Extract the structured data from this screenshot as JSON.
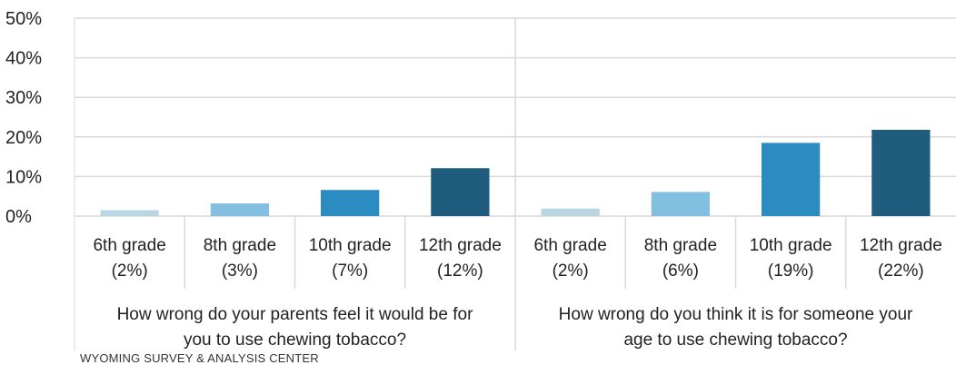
{
  "chart_data": {
    "type": "bar",
    "ylim": [
      0,
      50
    ],
    "yticks": [
      "0%",
      "10%",
      "20%",
      "30%",
      "40%",
      "50%"
    ],
    "ytick_values": [
      0,
      10,
      20,
      30,
      40,
      50
    ],
    "groups": [
      {
        "label_lines": [
          "How wrong do your parents feel it would be for",
          "you to use chewing tobacco?"
        ],
        "categories": [
          {
            "line1": "6th grade",
            "line2": "(2%)",
            "value": 1.5,
            "color": "#b8d7e2"
          },
          {
            "line1": "8th grade",
            "line2": "(3%)",
            "value": 3.2,
            "color": "#82bfe1"
          },
          {
            "line1": "10th grade",
            "line2": "(7%)",
            "value": 6.6,
            "color": "#2b8cc2"
          },
          {
            "line1": "12th grade",
            "line2": "(12%)",
            "value": 12.1,
            "color": "#1f5c7e"
          }
        ]
      },
      {
        "label_lines": [
          "How wrong do you think it is for someone your",
          "age to use chewing tobacco?"
        ],
        "categories": [
          {
            "line1": "6th grade",
            "line2": "(2%)",
            "value": 1.9,
            "color": "#b8d7e2"
          },
          {
            "line1": "8th grade",
            "line2": "(6%)",
            "value": 6.1,
            "color": "#82bfe1"
          },
          {
            "line1": "10th grade",
            "line2": "(19%)",
            "value": 18.5,
            "color": "#2b8cc2"
          },
          {
            "line1": "12th grade",
            "line2": "(22%)",
            "value": 21.8,
            "color": "#1f5c7e"
          }
        ]
      }
    ],
    "gridlines": true,
    "legend": "none"
  },
  "footer": "WYOMING SURVEY & ANALYSIS CENTER"
}
